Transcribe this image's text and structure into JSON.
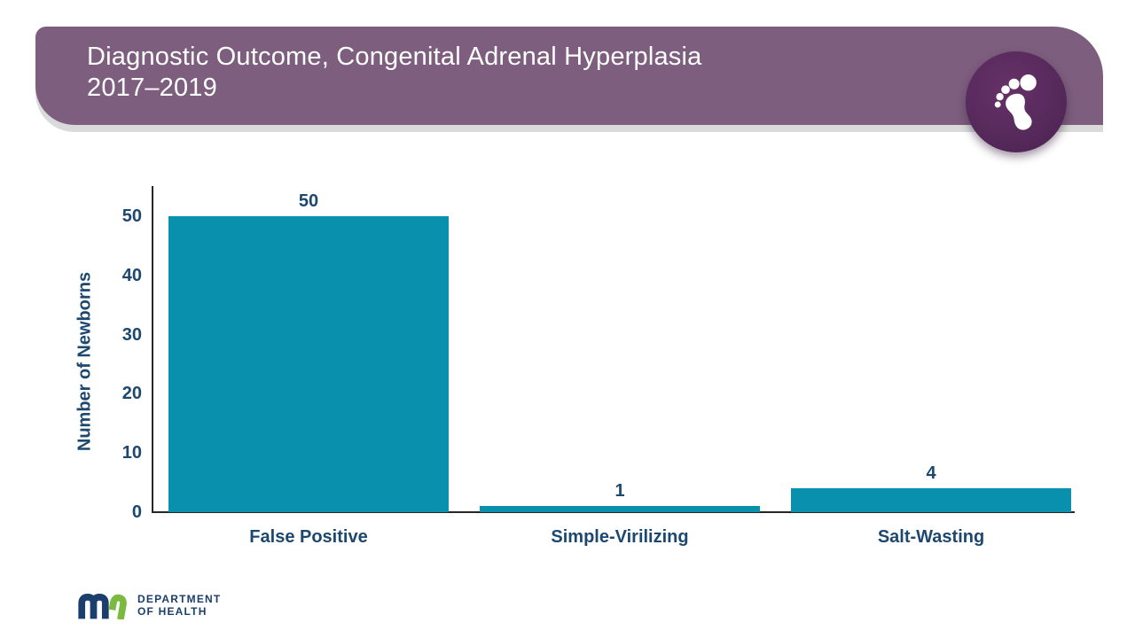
{
  "header": {
    "title_line1": "Diagnostic Outcome, Congenital Adrenal Hyperplasia",
    "title_line2": "2017–2019",
    "banner_color": "#7D5E7F",
    "banner_shadow_color": "#DADADA",
    "badge_icon": "baby-footprint-icon",
    "badge_circle_color": "#572A5C",
    "badge_glyph_color": "#FFFFFF"
  },
  "chart_data": {
    "type": "bar",
    "title": "",
    "categories": [
      "False Positive",
      "Simple-Virilizing",
      "Salt-Wasting"
    ],
    "values": [
      50,
      1,
      4
    ],
    "data_labels": [
      "50",
      "1",
      "4"
    ],
    "xlabel": "",
    "ylabel": "Number of Newborns",
    "yticks": [
      0,
      10,
      20,
      30,
      40,
      50
    ],
    "ylim": [
      0,
      55
    ],
    "grid": false,
    "legend": "none",
    "bar_color": "#0890AC",
    "label_color": "#1C4870",
    "axis_color": "#262626"
  },
  "footer": {
    "logo_mark": "mn",
    "logo_line1": "DEPARTMENT",
    "logo_line2": "OF HEALTH",
    "logo_navy": "#1B3E6C",
    "logo_green": "#7ABA3F"
  }
}
